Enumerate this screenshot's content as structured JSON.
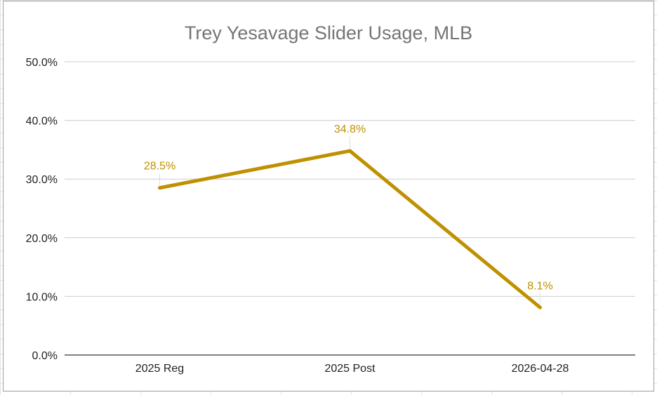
{
  "chart_data": {
    "type": "line",
    "title": "Trey Yesavage Slider Usage, MLB",
    "xlabel": "",
    "ylabel": "",
    "categories": [
      "2025 Reg",
      "2025 Post",
      "2026-04-28"
    ],
    "series": [
      {
        "values": [
          28.5,
          34.8,
          8.1
        ],
        "data_labels": [
          "28.5%",
          "34.8%",
          "8.1%"
        ],
        "color": "#bf9000"
      }
    ],
    "ylim": [
      0,
      50
    ],
    "yticks": [
      "0.0%",
      "10.0%",
      "20.0%",
      "30.0%",
      "40.0%",
      "50.0%"
    ],
    "ytick_values": [
      0,
      10,
      20,
      30,
      40,
      50
    ],
    "grid": true,
    "legend": "none"
  }
}
